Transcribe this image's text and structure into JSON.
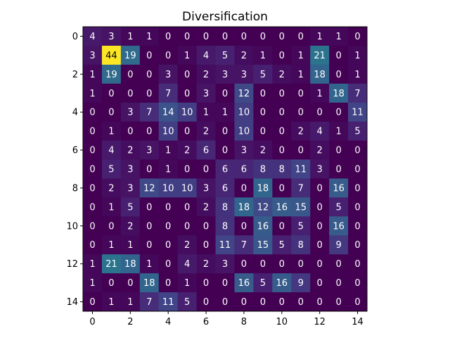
{
  "chart_data": {
    "type": "heatmap",
    "title": "Diversification",
    "xlabel": "",
    "ylabel": "",
    "colormap": "viridis",
    "value_range": [
      0,
      44
    ],
    "x_ticks": [
      0,
      2,
      4,
      6,
      8,
      10,
      12,
      14
    ],
    "y_ticks": [
      0,
      2,
      4,
      6,
      8,
      10,
      12,
      14
    ],
    "grid": false,
    "matrix": [
      [
        4,
        3,
        1,
        1,
        0,
        0,
        0,
        0,
        0,
        0,
        0,
        0,
        1,
        1,
        0
      ],
      [
        3,
        44,
        19,
        0,
        0,
        1,
        4,
        5,
        2,
        1,
        0,
        1,
        21,
        0,
        1
      ],
      [
        1,
        19,
        0,
        0,
        3,
        0,
        2,
        3,
        3,
        5,
        2,
        1,
        18,
        0,
        1
      ],
      [
        1,
        0,
        0,
        0,
        7,
        0,
        3,
        0,
        12,
        0,
        0,
        0,
        1,
        18,
        7
      ],
      [
        0,
        0,
        3,
        7,
        14,
        10,
        1,
        1,
        10,
        0,
        0,
        0,
        0,
        0,
        11
      ],
      [
        0,
        1,
        0,
        0,
        10,
        0,
        2,
        0,
        10,
        0,
        0,
        2,
        4,
        1,
        5
      ],
      [
        0,
        4,
        2,
        3,
        1,
        2,
        6,
        0,
        3,
        2,
        0,
        0,
        2,
        0,
        0
      ],
      [
        0,
        5,
        3,
        0,
        1,
        0,
        0,
        6,
        6,
        8,
        8,
        11,
        3,
        0,
        0
      ],
      [
        0,
        2,
        3,
        12,
        10,
        10,
        3,
        6,
        0,
        18,
        0,
        7,
        0,
        16,
        0
      ],
      [
        0,
        1,
        5,
        0,
        0,
        0,
        2,
        8,
        18,
        12,
        16,
        15,
        0,
        5,
        0
      ],
      [
        0,
        0,
        2,
        0,
        0,
        0,
        0,
        8,
        0,
        16,
        0,
        5,
        0,
        16,
        0
      ],
      [
        0,
        1,
        1,
        0,
        0,
        2,
        0,
        11,
        7,
        15,
        5,
        8,
        0,
        9,
        0
      ],
      [
        1,
        21,
        18,
        1,
        0,
        4,
        2,
        3,
        0,
        0,
        0,
        0,
        0,
        0,
        0
      ],
      [
        1,
        0,
        0,
        18,
        0,
        1,
        0,
        0,
        16,
        5,
        16,
        9,
        0,
        0,
        0
      ],
      [
        0,
        1,
        1,
        7,
        11,
        5,
        0,
        0,
        0,
        0,
        0,
        0,
        0,
        0,
        0
      ]
    ]
  }
}
